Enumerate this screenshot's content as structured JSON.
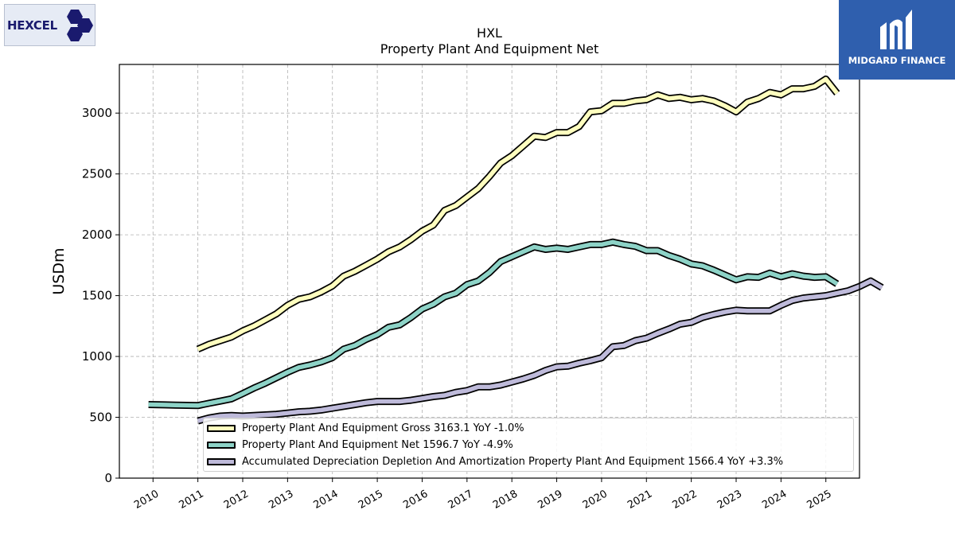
{
  "logos": {
    "left_brand": "HEXCEL",
    "right_brand": "MIDGARD FINANCE"
  },
  "header": {
    "title": "HXL",
    "subtitle": "Property Plant And Equipment Net"
  },
  "chart_data": {
    "type": "line",
    "title": "HXL",
    "subtitle": "Property Plant And Equipment Net",
    "xlabel": "",
    "ylabel": "USDm",
    "xlim": [
      2009.25,
      2025.75
    ],
    "ylim": [
      0,
      3400
    ],
    "xticks": [
      "2010",
      "2011",
      "2012",
      "2013",
      "2014",
      "2015",
      "2016",
      "2017",
      "2018",
      "2019",
      "2020",
      "2021",
      "2022",
      "2023",
      "2024",
      "2025"
    ],
    "yticks": [
      "0",
      "500",
      "1000",
      "1500",
      "2000",
      "2500",
      "3000"
    ],
    "grid": true,
    "legend_position": "bottom",
    "series": [
      {
        "name": "Property Plant And Equipment Gross",
        "legend_label": "Property Plant And Equipment Gross  3163.1 YoY -1.0%",
        "color": "#ffffbf",
        "points": [
          [
            2011.0,
            1060
          ],
          [
            2011.25,
            1100
          ],
          [
            2011.5,
            1130
          ],
          [
            2011.75,
            1160
          ],
          [
            2012.0,
            1210
          ],
          [
            2012.25,
            1250
          ],
          [
            2012.5,
            1300
          ],
          [
            2012.75,
            1350
          ],
          [
            2013.0,
            1420
          ],
          [
            2013.25,
            1470
          ],
          [
            2013.5,
            1490
          ],
          [
            2013.75,
            1530
          ],
          [
            2014.0,
            1580
          ],
          [
            2014.25,
            1660
          ],
          [
            2014.5,
            1700
          ],
          [
            2014.75,
            1750
          ],
          [
            2015.0,
            1800
          ],
          [
            2015.25,
            1860
          ],
          [
            2015.5,
            1900
          ],
          [
            2015.75,
            1960
          ],
          [
            2016.0,
            2030
          ],
          [
            2016.25,
            2080
          ],
          [
            2016.5,
            2200
          ],
          [
            2016.75,
            2240
          ],
          [
            2017.0,
            2310
          ],
          [
            2017.25,
            2380
          ],
          [
            2017.5,
            2480
          ],
          [
            2017.75,
            2590
          ],
          [
            2018.0,
            2650
          ],
          [
            2018.25,
            2730
          ],
          [
            2018.5,
            2810
          ],
          [
            2018.75,
            2800
          ],
          [
            2019.0,
            2840
          ],
          [
            2019.25,
            2840
          ],
          [
            2019.5,
            2890
          ],
          [
            2019.75,
            3010
          ],
          [
            2020.0,
            3020
          ],
          [
            2020.25,
            3080
          ],
          [
            2020.5,
            3080
          ],
          [
            2020.75,
            3100
          ],
          [
            2021.0,
            3110
          ],
          [
            2021.25,
            3150
          ],
          [
            2021.5,
            3120
          ],
          [
            2021.75,
            3130
          ],
          [
            2022.0,
            3110
          ],
          [
            2022.25,
            3120
          ],
          [
            2022.5,
            3100
          ],
          [
            2022.75,
            3060
          ],
          [
            2023.0,
            3010
          ],
          [
            2023.25,
            3090
          ],
          [
            2023.5,
            3120
          ],
          [
            2023.75,
            3170
          ],
          [
            2024.0,
            3150
          ],
          [
            2024.25,
            3200
          ],
          [
            2024.5,
            3200
          ],
          [
            2024.75,
            3220
          ],
          [
            2025.0,
            3280
          ],
          [
            2025.25,
            3163
          ]
        ]
      },
      {
        "name": "Property Plant And Equipment Net",
        "legend_label": "Property Plant And Equipment Net  1596.7 YoY -4.9%",
        "color": "#8dd3c7",
        "points": [
          [
            2009.9,
            605
          ],
          [
            2010.25,
            602
          ],
          [
            2010.5,
            600
          ],
          [
            2010.75,
            598
          ],
          [
            2011.0,
            596
          ],
          [
            2011.25,
            615
          ],
          [
            2011.5,
            633
          ],
          [
            2011.75,
            652
          ],
          [
            2012.0,
            695
          ],
          [
            2012.25,
            740
          ],
          [
            2012.5,
            780
          ],
          [
            2012.75,
            825
          ],
          [
            2013.0,
            870
          ],
          [
            2013.25,
            910
          ],
          [
            2013.5,
            930
          ],
          [
            2013.75,
            955
          ],
          [
            2014.0,
            990
          ],
          [
            2014.25,
            1060
          ],
          [
            2014.5,
            1090
          ],
          [
            2014.75,
            1140
          ],
          [
            2015.0,
            1180
          ],
          [
            2015.25,
            1240
          ],
          [
            2015.5,
            1260
          ],
          [
            2015.75,
            1320
          ],
          [
            2016.0,
            1390
          ],
          [
            2016.25,
            1430
          ],
          [
            2016.5,
            1490
          ],
          [
            2016.75,
            1520
          ],
          [
            2017.0,
            1590
          ],
          [
            2017.25,
            1620
          ],
          [
            2017.5,
            1690
          ],
          [
            2017.75,
            1780
          ],
          [
            2018.0,
            1820
          ],
          [
            2018.25,
            1860
          ],
          [
            2018.5,
            1900
          ],
          [
            2018.75,
            1880
          ],
          [
            2019.0,
            1890
          ],
          [
            2019.25,
            1880
          ],
          [
            2019.5,
            1900
          ],
          [
            2019.75,
            1920
          ],
          [
            2020.0,
            1920
          ],
          [
            2020.25,
            1940
          ],
          [
            2020.5,
            1920
          ],
          [
            2020.75,
            1905
          ],
          [
            2021.0,
            1870
          ],
          [
            2021.25,
            1870
          ],
          [
            2021.5,
            1830
          ],
          [
            2021.75,
            1800
          ],
          [
            2022.0,
            1760
          ],
          [
            2022.25,
            1745
          ],
          [
            2022.5,
            1710
          ],
          [
            2022.75,
            1670
          ],
          [
            2023.0,
            1630
          ],
          [
            2023.25,
            1655
          ],
          [
            2023.5,
            1650
          ],
          [
            2023.75,
            1685
          ],
          [
            2024.0,
            1655
          ],
          [
            2024.25,
            1680
          ],
          [
            2024.5,
            1660
          ],
          [
            2024.75,
            1650
          ],
          [
            2025.0,
            1655
          ],
          [
            2025.25,
            1597
          ]
        ]
      },
      {
        "name": "Accumulated Depreciation Depletion And Amortization Property Plant And Equipment",
        "legend_label": "Accumulated Depreciation Depletion And Amortization Property Plant And Equipment  1566.4 YoY +3.3%",
        "color": "#bebada",
        "points": [
          [
            2011.0,
            470
          ],
          [
            2011.25,
            495
          ],
          [
            2011.5,
            510
          ],
          [
            2011.75,
            515
          ],
          [
            2012.0,
            510
          ],
          [
            2012.25,
            515
          ],
          [
            2012.5,
            520
          ],
          [
            2012.75,
            525
          ],
          [
            2013.0,
            535
          ],
          [
            2013.25,
            545
          ],
          [
            2013.5,
            550
          ],
          [
            2013.75,
            560
          ],
          [
            2014.0,
            575
          ],
          [
            2014.25,
            590
          ],
          [
            2014.5,
            605
          ],
          [
            2014.75,
            620
          ],
          [
            2015.0,
            630
          ],
          [
            2015.25,
            630
          ],
          [
            2015.5,
            630
          ],
          [
            2015.75,
            640
          ],
          [
            2016.0,
            655
          ],
          [
            2016.25,
            670
          ],
          [
            2016.5,
            680
          ],
          [
            2016.75,
            705
          ],
          [
            2017.0,
            720
          ],
          [
            2017.25,
            750
          ],
          [
            2017.5,
            750
          ],
          [
            2017.75,
            765
          ],
          [
            2018.0,
            790
          ],
          [
            2018.25,
            815
          ],
          [
            2018.5,
            845
          ],
          [
            2018.75,
            885
          ],
          [
            2019.0,
            915
          ],
          [
            2019.25,
            920
          ],
          [
            2019.5,
            945
          ],
          [
            2019.75,
            965
          ],
          [
            2020.0,
            990
          ],
          [
            2020.25,
            1080
          ],
          [
            2020.5,
            1090
          ],
          [
            2020.75,
            1130
          ],
          [
            2021.0,
            1150
          ],
          [
            2021.25,
            1190
          ],
          [
            2021.5,
            1225
          ],
          [
            2021.75,
            1265
          ],
          [
            2022.0,
            1280
          ],
          [
            2022.25,
            1320
          ],
          [
            2022.5,
            1345
          ],
          [
            2022.75,
            1365
          ],
          [
            2023.0,
            1380
          ],
          [
            2023.25,
            1375
          ],
          [
            2023.5,
            1375
          ],
          [
            2023.75,
            1375
          ],
          [
            2024.0,
            1420
          ],
          [
            2024.25,
            1460
          ],
          [
            2024.5,
            1480
          ],
          [
            2024.75,
            1490
          ],
          [
            2025.0,
            1500
          ],
          [
            2025.25,
            1520
          ],
          [
            2025.5,
            1540
          ],
          [
            2025.75,
            1575
          ],
          [
            2026.0,
            1620
          ],
          [
            2026.25,
            1566
          ]
        ]
      }
    ]
  }
}
